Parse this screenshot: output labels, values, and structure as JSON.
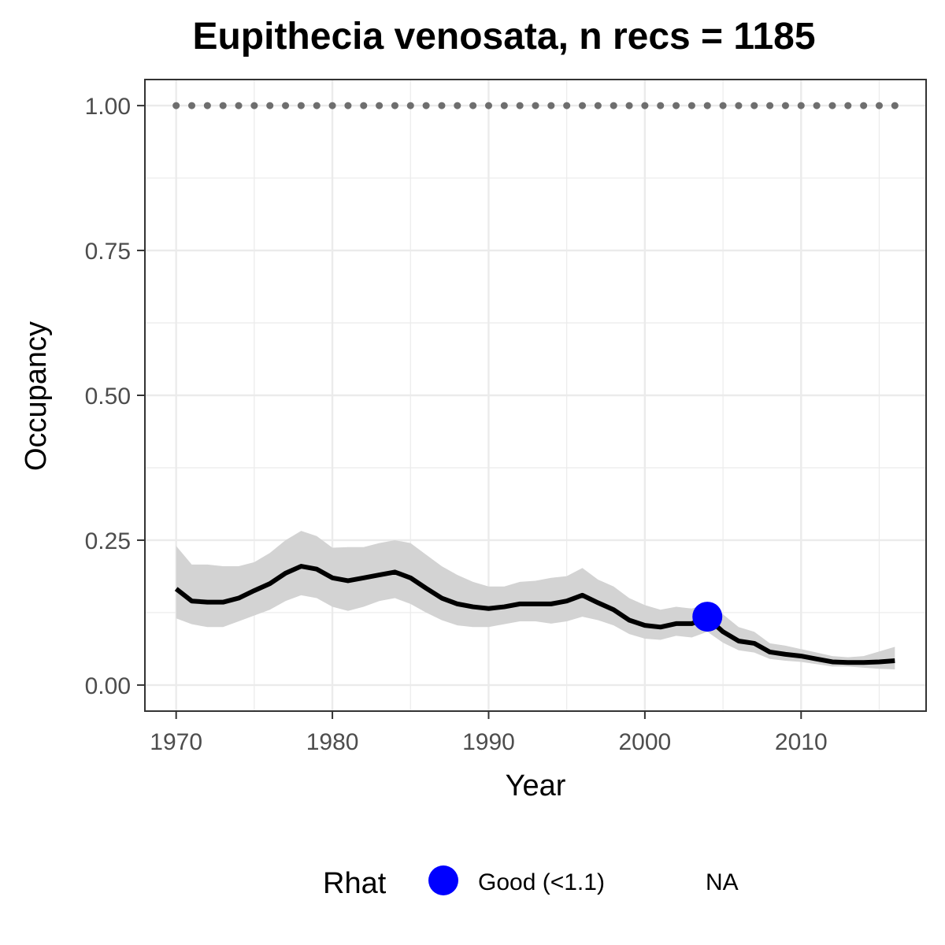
{
  "chart_data": {
    "type": "line",
    "title": "Eupithecia venosata, n recs = 1185",
    "xlabel": "Year",
    "ylabel": "Occupancy",
    "xlim": [
      1968,
      2018
    ],
    "ylim": [
      -0.045,
      1.045
    ],
    "x_ticks": [
      1970,
      1980,
      1990,
      2000,
      2010
    ],
    "x_tick_labels": [
      "1970",
      "1980",
      "1990",
      "2000",
      "2010"
    ],
    "y_ticks": [
      0,
      0.25,
      0.5,
      0.75,
      1.0
    ],
    "y_tick_labels": [
      "0.00",
      "0.25",
      "0.50",
      "0.75",
      "1.00"
    ],
    "grid": true,
    "x": [
      1970,
      1971,
      1972,
      1973,
      1974,
      1975,
      1976,
      1977,
      1978,
      1979,
      1980,
      1981,
      1982,
      1983,
      1984,
      1985,
      1986,
      1987,
      1988,
      1989,
      1990,
      1991,
      1992,
      1993,
      1994,
      1995,
      1996,
      1997,
      1998,
      1999,
      2000,
      2001,
      2002,
      2003,
      2004,
      2005,
      2006,
      2007,
      2008,
      2009,
      2010,
      2011,
      2012,
      2013,
      2014,
      2015,
      2016
    ],
    "series": [
      {
        "values": [
          0.166,
          0.145,
          0.143,
          0.143,
          0.15,
          0.163,
          0.175,
          0.193,
          0.205,
          0.2,
          0.185,
          0.18,
          0.185,
          0.19,
          0.195,
          0.185,
          0.167,
          0.15,
          0.14,
          0.135,
          0.132,
          0.135,
          0.14,
          0.14,
          0.14,
          0.145,
          0.155,
          0.142,
          0.13,
          0.112,
          0.103,
          0.1,
          0.106,
          0.106,
          0.116,
          0.092,
          0.076,
          0.072,
          0.057,
          0.053,
          0.05,
          0.045,
          0.04,
          0.039,
          0.039,
          0.04,
          0.042
        ],
        "lower": [
          0.115,
          0.105,
          0.1,
          0.1,
          0.11,
          0.12,
          0.13,
          0.145,
          0.155,
          0.15,
          0.135,
          0.128,
          0.135,
          0.145,
          0.15,
          0.14,
          0.125,
          0.112,
          0.103,
          0.1,
          0.1,
          0.105,
          0.11,
          0.11,
          0.106,
          0.11,
          0.118,
          0.112,
          0.103,
          0.088,
          0.08,
          0.078,
          0.085,
          0.082,
          0.092,
          0.073,
          0.06,
          0.056,
          0.045,
          0.042,
          0.04,
          0.036,
          0.032,
          0.032,
          0.03,
          0.028,
          0.027
        ],
        "upper": [
          0.24,
          0.208,
          0.208,
          0.205,
          0.205,
          0.212,
          0.228,
          0.25,
          0.266,
          0.257,
          0.237,
          0.238,
          0.238,
          0.245,
          0.25,
          0.245,
          0.225,
          0.205,
          0.19,
          0.178,
          0.17,
          0.17,
          0.178,
          0.18,
          0.185,
          0.188,
          0.202,
          0.182,
          0.17,
          0.15,
          0.138,
          0.13,
          0.135,
          0.132,
          0.14,
          0.122,
          0.1,
          0.092,
          0.072,
          0.068,
          0.062,
          0.056,
          0.05,
          0.048,
          0.05,
          0.058,
          0.066
        ]
      },
      {
        "values": [
          1,
          1,
          1,
          1,
          1,
          1,
          1,
          1,
          1,
          1,
          1,
          1,
          1,
          1,
          1,
          1,
          1,
          1,
          1,
          1,
          1,
          1,
          1,
          1,
          1,
          1,
          1,
          1,
          1,
          1,
          1,
          1,
          1,
          1,
          1,
          1,
          1,
          1,
          1,
          1,
          1,
          1,
          1,
          1,
          1,
          1,
          1
        ]
      }
    ],
    "highlight_point": {
      "x": 2004,
      "y": 0.118,
      "category": "Good (<1.1)"
    },
    "legend": {
      "position": "bottom",
      "title": "Rhat",
      "items": [
        {
          "label": "Good (<1.1)",
          "color": "#0000ff",
          "marker": "circle"
        },
        {
          "label": "NA",
          "color": "",
          "marker": "none"
        }
      ]
    },
    "colors": {
      "line": "#000000",
      "ribbon": "#d3d3d3",
      "dotted": "#6e6e6e",
      "grid": "#ebebeb",
      "panel_border": "#333333",
      "tick_text": "#4d4d4d"
    }
  }
}
